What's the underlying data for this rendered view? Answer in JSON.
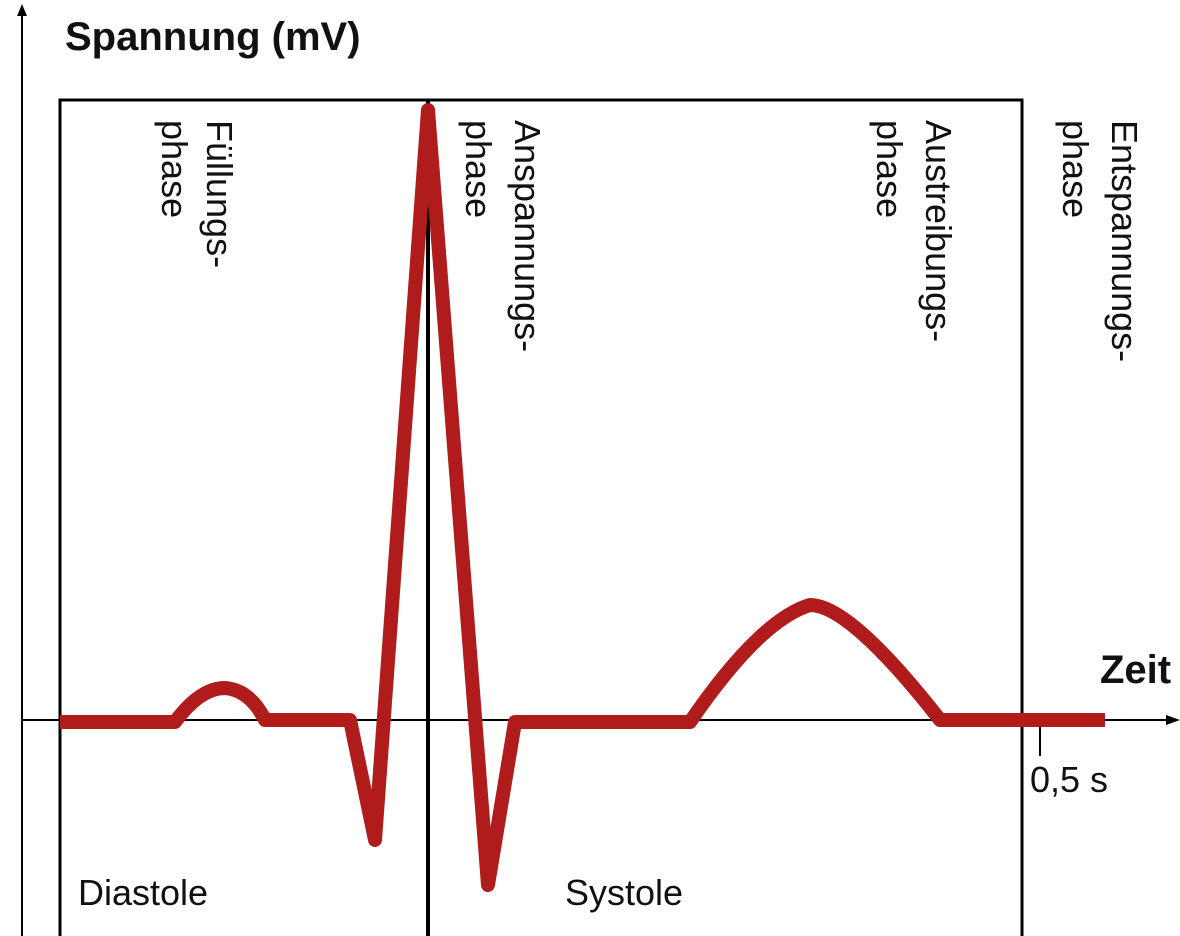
{
  "axis": {
    "y_label": "Spannung (mV)",
    "x_label": "Zeit",
    "x_tick": "0,5 s"
  },
  "phases": [
    {
      "line1": "Füllungs-",
      "line2": "phase"
    },
    {
      "line1": "Anspannungs-",
      "line2": "phase"
    },
    {
      "line1": "Austreibungs-",
      "line2": "phase"
    },
    {
      "line1": "Entspannungs-",
      "line2": "phase"
    }
  ],
  "regions": {
    "left": "Diastole",
    "right": "Systole"
  }
}
